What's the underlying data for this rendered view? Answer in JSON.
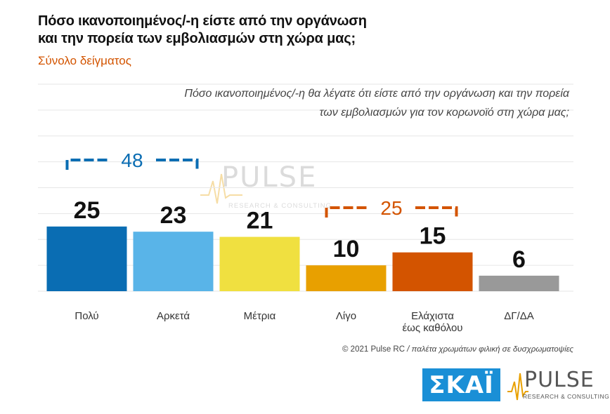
{
  "header": {
    "title_line1": "Πόσο ικανοποιημένος/-η είστε από την οργάνωση",
    "title_line2": "και την πορεία των εμβολιασμών στη χώρα μας;",
    "subtitle": "Σύνολο δείγματος"
  },
  "question": {
    "line1": "Πόσο ικανοποιημένος/-η θα λέγατε ότι είστε από την οργάνωση και την πορεία",
    "line2": "των εμβολιασμών για τον κορωνοϊό στη χώρα μας;"
  },
  "chart_data": {
    "type": "bar",
    "categories": [
      "Πολύ",
      "Αρκετά",
      "Μέτρια",
      "Λίγο",
      "Ελάχιστα έως καθόλου",
      "ΔΓ/ΔΑ"
    ],
    "category_lines": [
      [
        "Πολύ"
      ],
      [
        "Αρκετά"
      ],
      [
        "Μέτρια"
      ],
      [
        "Λίγο"
      ],
      [
        "Ελάχιστα",
        "έως καθόλου"
      ],
      [
        "ΔΓ/ΔΑ"
      ]
    ],
    "values": [
      25,
      23,
      21,
      10,
      15,
      6
    ],
    "value_labels": [
      "25",
      "23",
      "21",
      "10",
      "15",
      "6"
    ],
    "colors": [
      "#0a6db3",
      "#59b4e8",
      "#f0e040",
      "#e8a000",
      "#d35400",
      "#999999"
    ],
    "ylim": [
      0,
      80
    ],
    "grid": true,
    "brackets": [
      {
        "label": "48",
        "value": 48,
        "from": 0,
        "to": 1,
        "color": "#0a6db3"
      },
      {
        "label": "25",
        "value": 25,
        "from": 3,
        "to": 4,
        "color": "#d35400"
      }
    ]
  },
  "footer": {
    "copyright": "© 2021 Pulse RC",
    "separator": "/",
    "note": "παλέτα χρωμάτων φιλική σε δυσχρωματοψίες"
  },
  "logos": {
    "skai": "ΣΚΑΪ",
    "pulse": "PULSE",
    "pulse_sub": "RESEARCH & CONSULTING"
  }
}
